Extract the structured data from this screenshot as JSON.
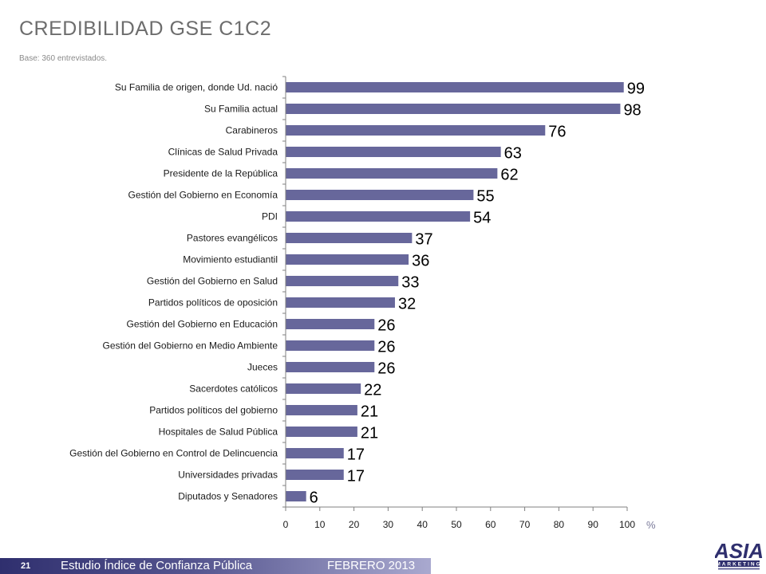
{
  "header": {
    "title": "CREDIBILIDAD GSE C1C2",
    "subtitle": "Base: 360 entrevistados."
  },
  "footer": {
    "page_number": "21",
    "study": "Estudio Índice de Confianza Pública",
    "date": "FEBRERO 2013"
  },
  "logo": {
    "text": "ASIA",
    "subtext": "MARKETING"
  },
  "colors": {
    "bar": "#67679b",
    "axis": "#808080",
    "footer": "#2f2f6e"
  },
  "chart_data": {
    "type": "bar",
    "orientation": "horizontal",
    "categories": [
      "Su Familia de origen, donde Ud. nació",
      "Su Familia actual",
      "Carabineros",
      "Clínicas de Salud Privada",
      "Presidente de la República",
      "Gestión del Gobierno en Economía",
      "PDI",
      "Pastores evangélicos",
      "Movimiento estudiantil",
      "Gestión del Gobierno en Salud",
      "Partidos políticos de oposición",
      "Gestión del Gobierno en Educación",
      "Gestión del Gobierno en Medio Ambiente",
      "Jueces",
      "Sacerdotes católicos",
      "Partidos políticos del gobierno",
      "Hospitales de Salud Pública",
      "Gestión del Gobierno en Control de Delincuencia",
      "Universidades privadas",
      "Diputados y Senadores"
    ],
    "values": [
      99,
      98,
      76,
      63,
      62,
      55,
      54,
      37,
      36,
      33,
      32,
      26,
      26,
      26,
      22,
      21,
      21,
      17,
      17,
      6
    ],
    "xlim": [
      0,
      100
    ],
    "xticks": [
      0,
      10,
      20,
      30,
      40,
      50,
      60,
      70,
      80,
      90,
      100
    ],
    "xunit": "%",
    "grid": false
  }
}
